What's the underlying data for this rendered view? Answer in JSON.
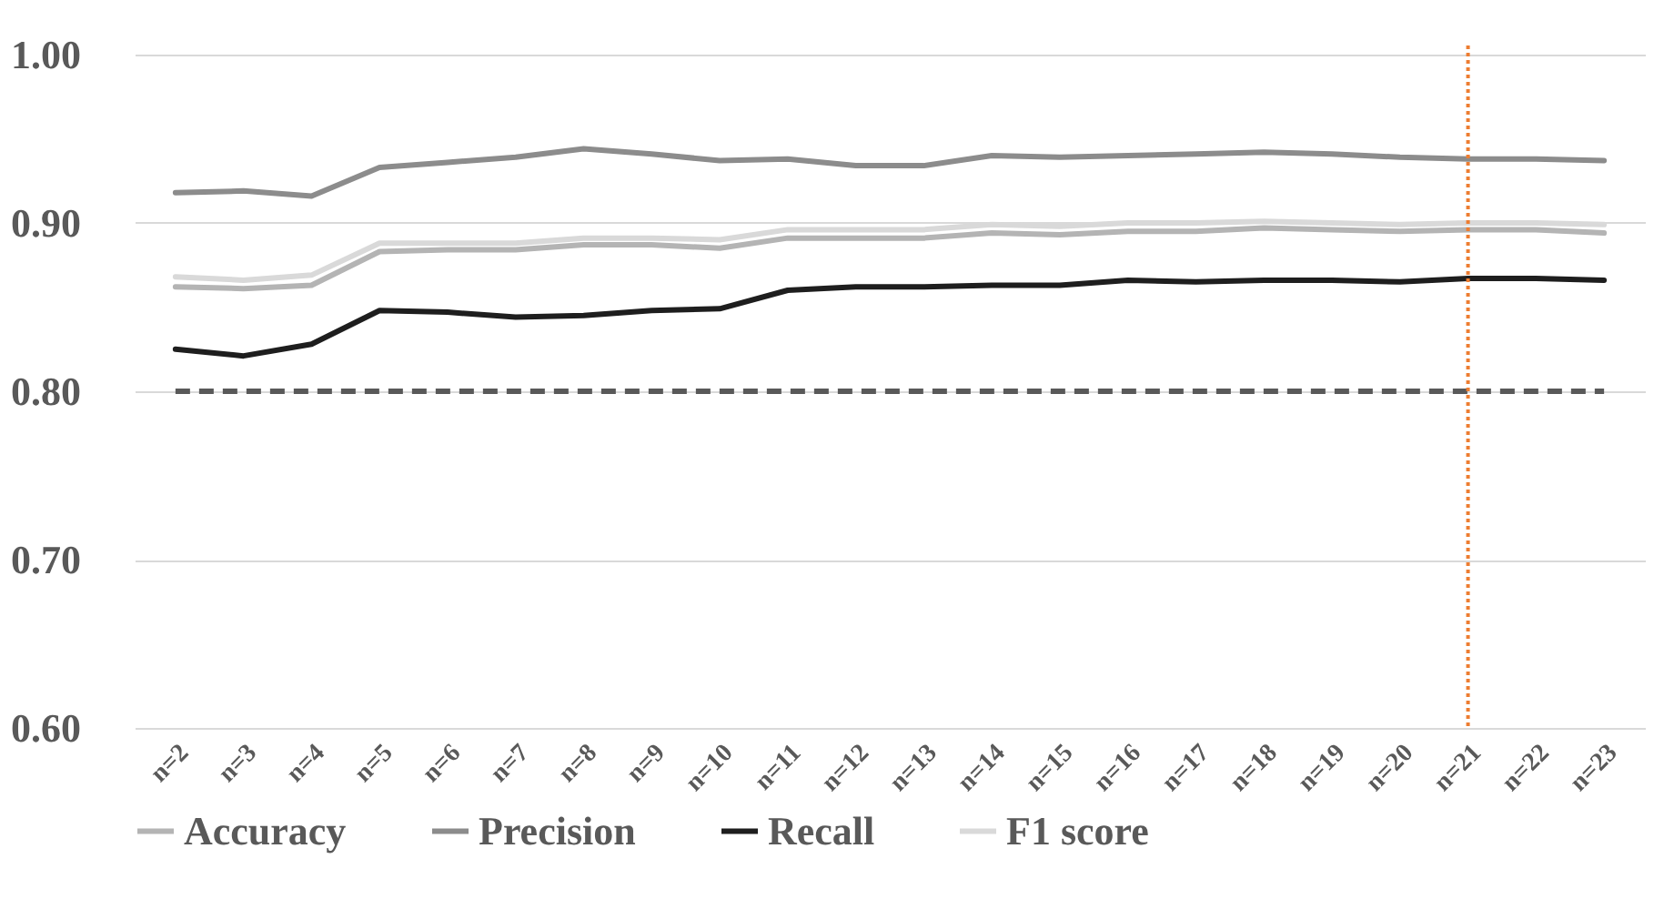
{
  "chart_data": {
    "type": "line",
    "categories": [
      "n=2",
      "n=3",
      "n=4",
      "n=5",
      "n=6",
      "n=7",
      "n=8",
      "n=9",
      "n=10",
      "n=11",
      "n=12",
      "n=13",
      "n=14",
      "n=15",
      "n=16",
      "n=17",
      "n=18",
      "n=19",
      "n=20",
      "n=21",
      "n=22",
      "n=23"
    ],
    "series": [
      {
        "name": "Accuracy",
        "color": "#b4b4b4",
        "values": [
          0.862,
          0.861,
          0.863,
          0.883,
          0.884,
          0.884,
          0.887,
          0.887,
          0.885,
          0.891,
          0.891,
          0.891,
          0.894,
          0.893,
          0.895,
          0.895,
          0.897,
          0.896,
          0.895,
          0.896,
          0.896,
          0.894
        ]
      },
      {
        "name": "Precision",
        "color": "#8c8c8c",
        "values": [
          0.918,
          0.919,
          0.916,
          0.933,
          0.936,
          0.939,
          0.944,
          0.941,
          0.937,
          0.938,
          0.934,
          0.934,
          0.94,
          0.939,
          0.94,
          0.941,
          0.942,
          0.941,
          0.939,
          0.938,
          0.938,
          0.937
        ]
      },
      {
        "name": "Recall",
        "color": "#1e1e1e",
        "values": [
          0.825,
          0.821,
          0.828,
          0.848,
          0.847,
          0.844,
          0.845,
          0.848,
          0.849,
          0.86,
          0.862,
          0.862,
          0.863,
          0.863,
          0.866,
          0.865,
          0.866,
          0.866,
          0.865,
          0.867,
          0.867,
          0.866
        ]
      },
      {
        "name": "F1 score",
        "color": "#d9d9d9",
        "values": [
          0.868,
          0.866,
          0.869,
          0.888,
          0.888,
          0.888,
          0.891,
          0.891,
          0.89,
          0.896,
          0.896,
          0.896,
          0.899,
          0.898,
          0.9,
          0.9,
          0.901,
          0.9,
          0.899,
          0.9,
          0.9,
          0.899
        ]
      }
    ],
    "ylim": [
      0.6,
      1.0
    ],
    "yticks": [
      {
        "value": 0.6,
        "label": "0.60"
      },
      {
        "value": 0.7,
        "label": "0.70"
      },
      {
        "value": 0.8,
        "label": "0.80"
      },
      {
        "value": 0.9,
        "label": "0.90"
      },
      {
        "value": 1.0,
        "label": "1.00"
      }
    ],
    "ref_lines": [
      {
        "axis": "y",
        "value": 0.8,
        "color": "#595959",
        "line_style": "dashed"
      },
      {
        "axis": "x",
        "value": "n=21",
        "color": "#ed7d31",
        "line_style": "dotted"
      }
    ],
    "grid": "y",
    "legend": "bottom",
    "marker": "none",
    "line_style": "solid"
  }
}
